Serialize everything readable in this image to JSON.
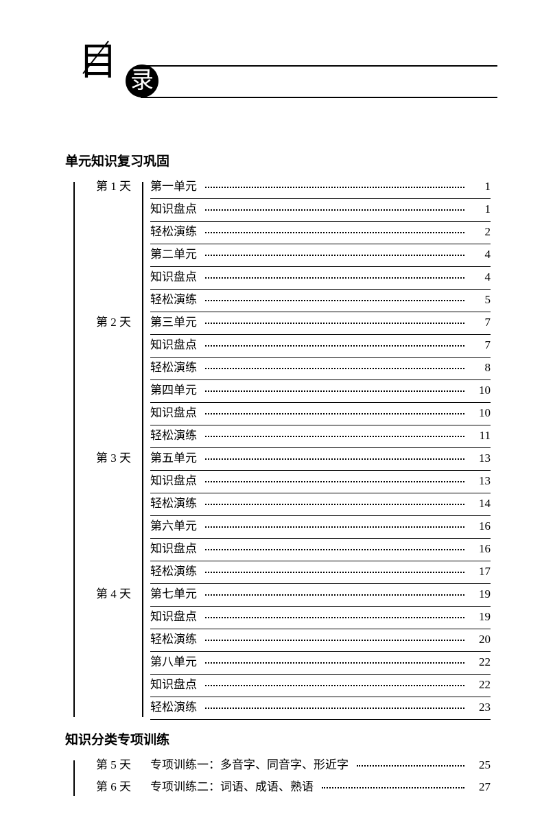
{
  "header": {
    "char1": "目",
    "char2": "录"
  },
  "sections": [
    {
      "title": "单元知识复习巩固",
      "rows": [
        {
          "day": "第 1 天",
          "title": "第一单元",
          "page": "1"
        },
        {
          "day": "",
          "title": "知识盘点",
          "page": "1"
        },
        {
          "day": "",
          "title": "轻松演练",
          "page": "2"
        },
        {
          "day": "",
          "title": "第二单元",
          "page": "4"
        },
        {
          "day": "",
          "title": "知识盘点",
          "page": "4"
        },
        {
          "day": "",
          "title": "轻松演练",
          "page": "5"
        },
        {
          "day": "第 2 天",
          "title": "第三单元",
          "page": "7"
        },
        {
          "day": "",
          "title": "知识盘点",
          "page": "7"
        },
        {
          "day": "",
          "title": "轻松演练",
          "page": "8"
        },
        {
          "day": "",
          "title": "第四单元",
          "page": "10"
        },
        {
          "day": "",
          "title": "知识盘点",
          "page": "10"
        },
        {
          "day": "",
          "title": "轻松演练",
          "page": "11"
        },
        {
          "day": "第 3 天",
          "title": "第五单元",
          "page": "13"
        },
        {
          "day": "",
          "title": "知识盘点",
          "page": "13"
        },
        {
          "day": "",
          "title": "轻松演练",
          "page": "14"
        },
        {
          "day": "",
          "title": "第六单元",
          "page": "16"
        },
        {
          "day": "",
          "title": "知识盘点",
          "page": "16"
        },
        {
          "day": "",
          "title": "轻松演练",
          "page": "17"
        },
        {
          "day": "第 4 天",
          "title": "第七单元",
          "page": "19"
        },
        {
          "day": "",
          "title": "知识盘点",
          "page": "19"
        },
        {
          "day": "",
          "title": "轻松演练",
          "page": "20"
        },
        {
          "day": "",
          "title": "第八单元",
          "page": "22"
        },
        {
          "day": "",
          "title": "知识盘点",
          "page": "22"
        },
        {
          "day": "",
          "title": "轻松演练",
          "page": "23"
        }
      ]
    },
    {
      "title": "知识分类专项训练",
      "rows": [
        {
          "day": "第 5 天",
          "title": "专项训练一：多音字、同音字、形近字",
          "page": "25"
        },
        {
          "day": "第 6 天",
          "title": "专项训练二：词语、成语、熟语",
          "page": "27"
        }
      ]
    }
  ]
}
